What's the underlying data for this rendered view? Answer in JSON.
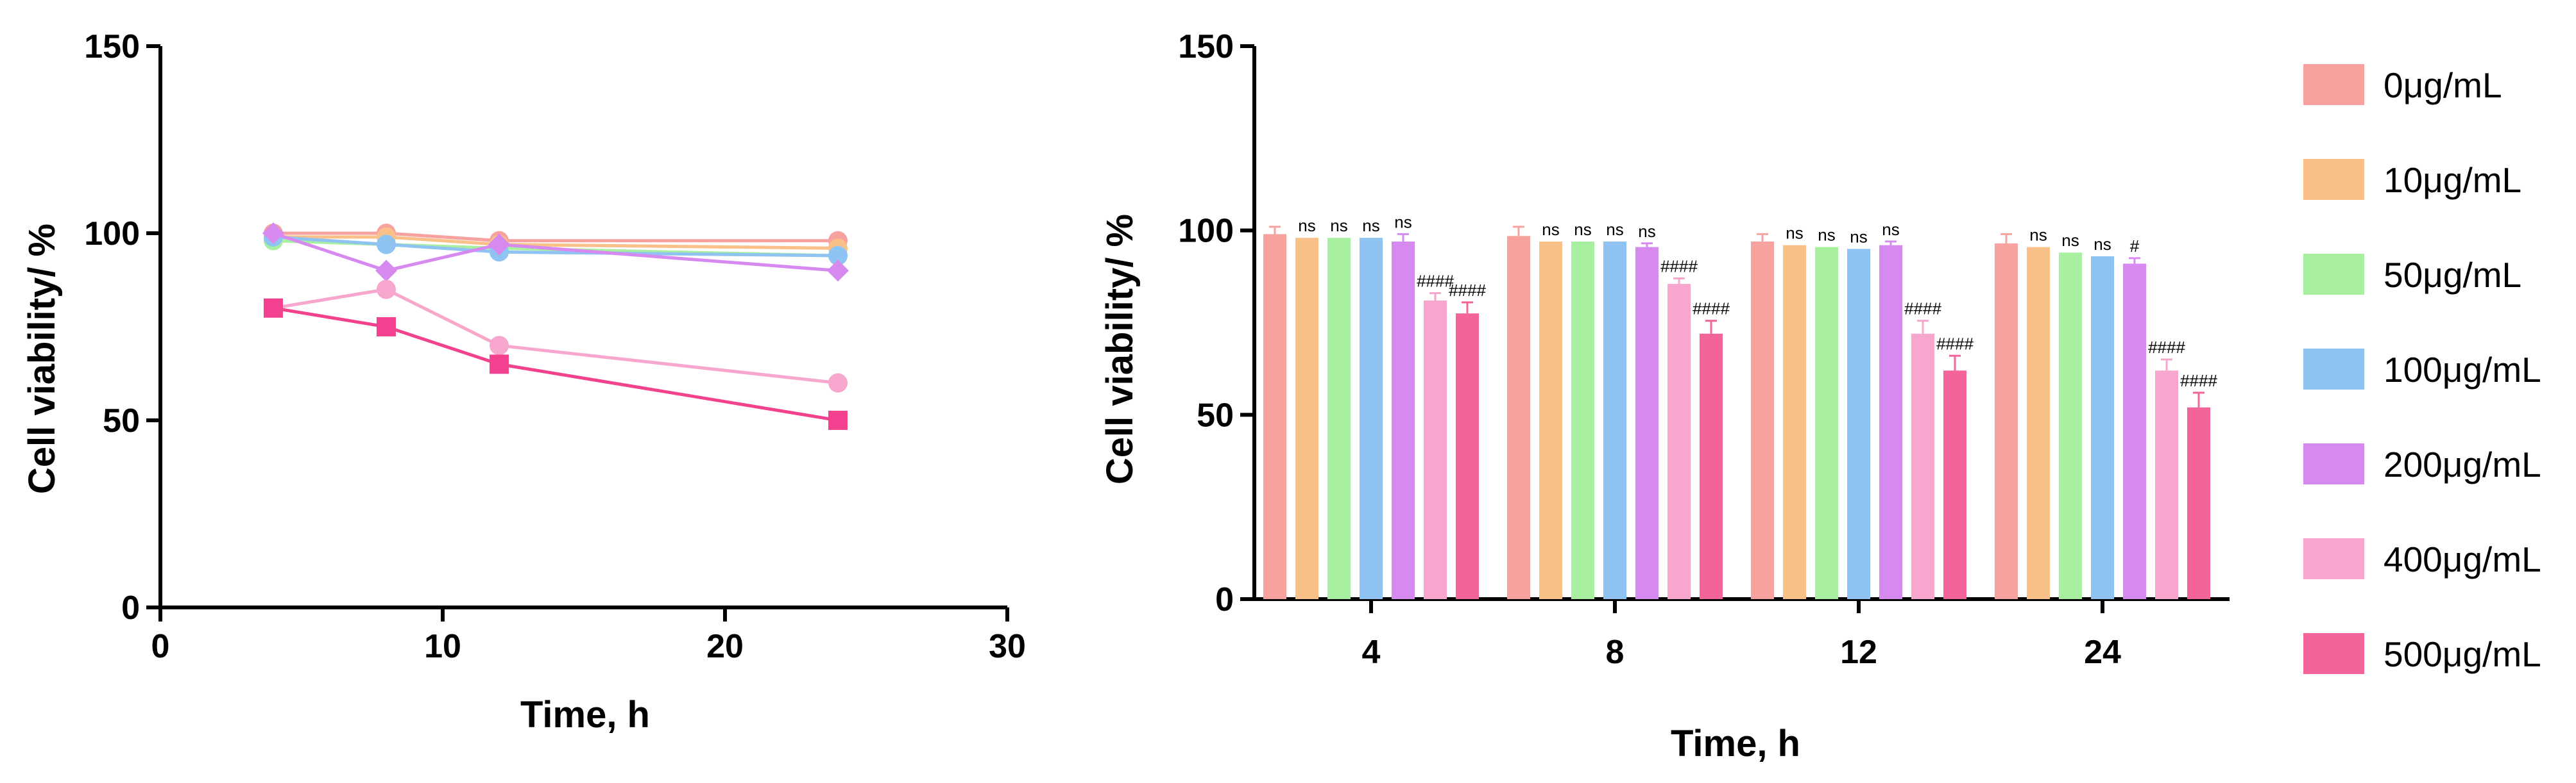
{
  "chart_data": [
    {
      "type": "line",
      "xlabel": "Time, h",
      "ylabel": "Cell viability/ %",
      "xlim": [
        0,
        30
      ],
      "ylim": [
        0,
        150
      ],
      "xticks": [
        "0",
        "10",
        "20",
        "30"
      ],
      "yticks": [
        "0",
        "50",
        "100",
        "150"
      ],
      "x": [
        4,
        8,
        12,
        24
      ],
      "series": [
        {
          "name": "0μg/mL",
          "color": "#F7A29E",
          "marker": "circle",
          "values": [
            100,
            100,
            98,
            98
          ]
        },
        {
          "name": "10μg/mL",
          "color": "#F9C08A",
          "marker": "circle",
          "values": [
            99,
            99,
            97,
            96
          ]
        },
        {
          "name": "50μg/mL",
          "color": "#A8EFA0",
          "marker": "circle",
          "values": [
            98,
            97,
            96,
            94
          ]
        },
        {
          "name": "100μg/mL",
          "color": "#8FC3F2",
          "marker": "circle",
          "values": [
            99,
            97,
            95,
            94
          ]
        },
        {
          "name": "200μg/mL",
          "color": "#D68AF0",
          "marker": "diamond",
          "values": [
            100,
            90,
            97,
            90
          ]
        },
        {
          "name": "400μg/mL",
          "color": "#F7A6CE",
          "marker": "circle",
          "values": [
            80,
            85,
            70,
            60
          ]
        },
        {
          "name": "500μg/mL",
          "color": "#F2418F",
          "marker": "square",
          "values": [
            80,
            75,
            65,
            50
          ]
        }
      ]
    },
    {
      "type": "bar",
      "xlabel": "Time, h",
      "ylabel": "Cell viability/ %",
      "ylim": [
        0,
        150
      ],
      "yticks": [
        "0",
        "50",
        "100",
        "150"
      ],
      "categories": [
        "4",
        "8",
        "12",
        "24"
      ],
      "legend_position": "right",
      "series": [
        {
          "name": "0μg/mL",
          "color": "#F7A29E",
          "values": [
            99,
            98.5,
            97,
            96.5
          ],
          "errors": [
            2,
            2.5,
            2,
            2.5
          ],
          "sig": [
            "",
            "",
            "",
            ""
          ]
        },
        {
          "name": "10μg/mL",
          "color": "#F9C08A",
          "values": [
            98,
            97,
            96,
            95.5
          ],
          "errors": [
            0,
            0,
            0,
            0
          ],
          "sig": [
            "ns",
            "ns",
            "ns",
            "ns"
          ]
        },
        {
          "name": "50μg/mL",
          "color": "#A8EFA0",
          "values": [
            98,
            97,
            95.5,
            94
          ],
          "errors": [
            0,
            0,
            0,
            0
          ],
          "sig": [
            "ns",
            "ns",
            "ns",
            "ns"
          ]
        },
        {
          "name": "100μg/mL",
          "color": "#8FC3F2",
          "values": [
            98,
            97,
            95,
            93
          ],
          "errors": [
            0,
            0,
            0,
            0
          ],
          "sig": [
            "ns",
            "ns",
            "ns",
            "ns"
          ]
        },
        {
          "name": "200μg/mL",
          "color": "#D68AF0",
          "values": [
            97,
            95.5,
            96,
            91
          ],
          "errors": [
            2,
            1,
            1,
            1.5
          ],
          "sig": [
            "ns",
            "ns",
            "ns",
            "#"
          ]
        },
        {
          "name": "400μg/mL",
          "color": "#F7A6CE",
          "values": [
            81,
            85.5,
            72,
            62
          ],
          "errors": [
            2,
            1.5,
            3.5,
            3
          ],
          "sig": [
            "####",
            "####",
            "####",
            "####"
          ]
        },
        {
          "name": "500μg/mL",
          "color": "#F2649A",
          "values": [
            77.5,
            72,
            62,
            52
          ],
          "errors": [
            3,
            3.5,
            4,
            4
          ],
          "sig": [
            "####",
            "####",
            "####",
            "####"
          ]
        }
      ]
    }
  ]
}
